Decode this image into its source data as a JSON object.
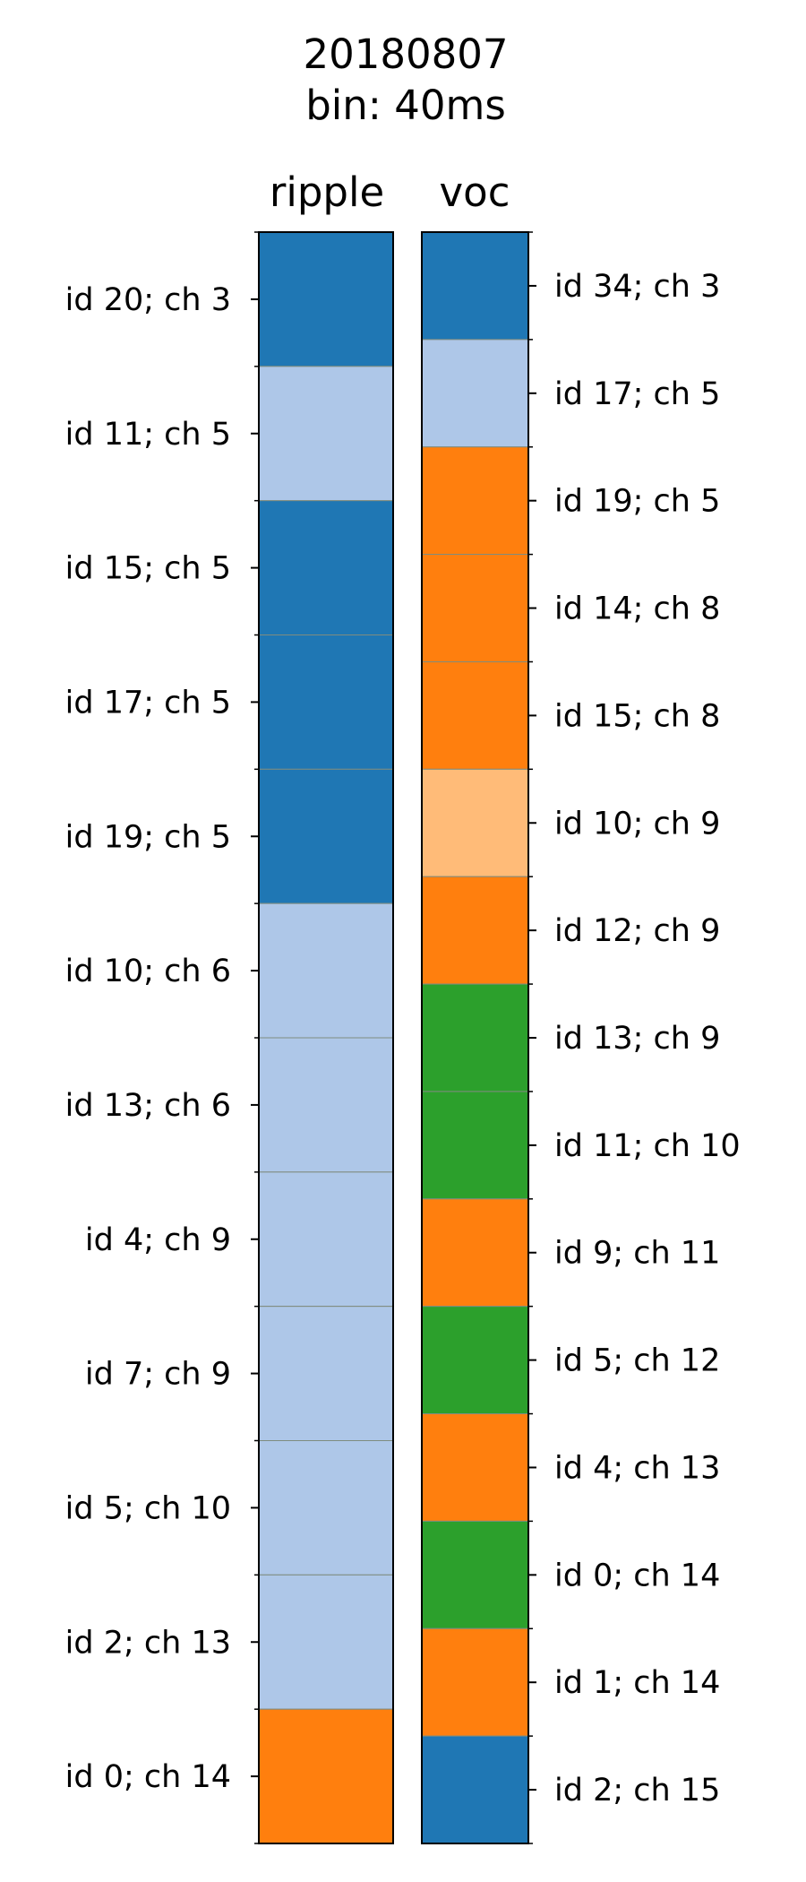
{
  "chart_data": {
    "type": "heatmap",
    "title": "20180807",
    "subtitle": "bin: 40ms",
    "palette": {
      "dark-blue": "#1f77b4",
      "light-blue": "#aec7e8",
      "orange": "#ff7f0e",
      "light-orange": "#ffbb78",
      "green": "#2ca02c"
    },
    "panels": [
      {
        "name": "ripple",
        "label_side": "left",
        "rows": [
          {
            "label": "id 20; ch 3",
            "color": "dark-blue"
          },
          {
            "label": "id 11; ch 5",
            "color": "light-blue"
          },
          {
            "label": "id 15; ch 5",
            "color": "dark-blue"
          },
          {
            "label": "id 17; ch 5",
            "color": "dark-blue"
          },
          {
            "label": "id 19; ch 5",
            "color": "dark-blue"
          },
          {
            "label": "id 10; ch 6",
            "color": "light-blue"
          },
          {
            "label": "id 13; ch 6",
            "color": "light-blue"
          },
          {
            "label": "id 4; ch 9",
            "color": "light-blue"
          },
          {
            "label": "id 7; ch 9",
            "color": "light-blue"
          },
          {
            "label": "id 5; ch 10",
            "color": "light-blue"
          },
          {
            "label": "id 2; ch 13",
            "color": "light-blue"
          },
          {
            "label": "id 0; ch 14",
            "color": "orange"
          }
        ]
      },
      {
        "name": "voc",
        "label_side": "right",
        "rows": [
          {
            "label": "id 34; ch 3",
            "color": "dark-blue"
          },
          {
            "label": "id 17; ch 5",
            "color": "light-blue"
          },
          {
            "label": "id 19; ch 5",
            "color": "orange"
          },
          {
            "label": "id 14; ch 8",
            "color": "orange"
          },
          {
            "label": "id 15; ch 8",
            "color": "orange"
          },
          {
            "label": "id 10; ch 9",
            "color": "light-orange"
          },
          {
            "label": "id 12; ch 9",
            "color": "orange"
          },
          {
            "label": "id 13; ch 9",
            "color": "green"
          },
          {
            "label": "id 11; ch 10",
            "color": "green"
          },
          {
            "label": "id 9; ch 11",
            "color": "orange"
          },
          {
            "label": "id 5; ch 12",
            "color": "green"
          },
          {
            "label": "id 4; ch 13",
            "color": "orange"
          },
          {
            "label": "id 0; ch 14",
            "color": "green"
          },
          {
            "label": "id 1; ch 14",
            "color": "orange"
          },
          {
            "label": "id 2; ch 15",
            "color": "dark-blue"
          }
        ]
      }
    ]
  }
}
